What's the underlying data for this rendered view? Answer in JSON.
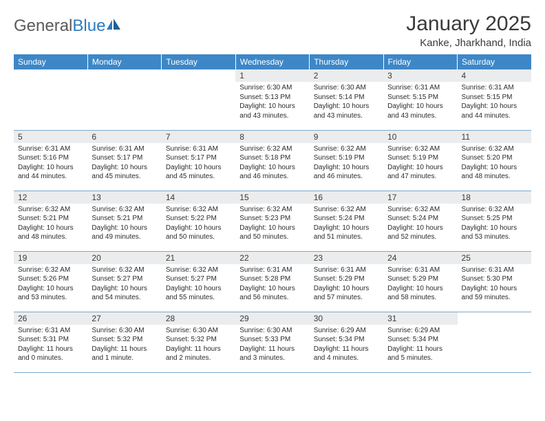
{
  "logo": {
    "text1": "General",
    "text2": "Blue"
  },
  "title": "January 2025",
  "location": "Kanke, Jharkhand, India",
  "colors": {
    "header_bg": "#3d87c7",
    "header_fg": "#ffffff",
    "daynum_bg": "#ebeced",
    "rule": "#7aa8cc",
    "logo_gray": "#5a5a5a",
    "logo_blue": "#2d7bbf"
  },
  "weekdays": [
    "Sunday",
    "Monday",
    "Tuesday",
    "Wednesday",
    "Thursday",
    "Friday",
    "Saturday"
  ],
  "weeks": [
    [
      null,
      null,
      null,
      {
        "n": "1",
        "sr": "6:30 AM",
        "ss": "5:13 PM",
        "dl": "10 hours and 43 minutes."
      },
      {
        "n": "2",
        "sr": "6:30 AM",
        "ss": "5:14 PM",
        "dl": "10 hours and 43 minutes."
      },
      {
        "n": "3",
        "sr": "6:31 AM",
        "ss": "5:15 PM",
        "dl": "10 hours and 43 minutes."
      },
      {
        "n": "4",
        "sr": "6:31 AM",
        "ss": "5:15 PM",
        "dl": "10 hours and 44 minutes."
      }
    ],
    [
      {
        "n": "5",
        "sr": "6:31 AM",
        "ss": "5:16 PM",
        "dl": "10 hours and 44 minutes."
      },
      {
        "n": "6",
        "sr": "6:31 AM",
        "ss": "5:17 PM",
        "dl": "10 hours and 45 minutes."
      },
      {
        "n": "7",
        "sr": "6:31 AM",
        "ss": "5:17 PM",
        "dl": "10 hours and 45 minutes."
      },
      {
        "n": "8",
        "sr": "6:32 AM",
        "ss": "5:18 PM",
        "dl": "10 hours and 46 minutes."
      },
      {
        "n": "9",
        "sr": "6:32 AM",
        "ss": "5:19 PM",
        "dl": "10 hours and 46 minutes."
      },
      {
        "n": "10",
        "sr": "6:32 AM",
        "ss": "5:19 PM",
        "dl": "10 hours and 47 minutes."
      },
      {
        "n": "11",
        "sr": "6:32 AM",
        "ss": "5:20 PM",
        "dl": "10 hours and 48 minutes."
      }
    ],
    [
      {
        "n": "12",
        "sr": "6:32 AM",
        "ss": "5:21 PM",
        "dl": "10 hours and 48 minutes."
      },
      {
        "n": "13",
        "sr": "6:32 AM",
        "ss": "5:21 PM",
        "dl": "10 hours and 49 minutes."
      },
      {
        "n": "14",
        "sr": "6:32 AM",
        "ss": "5:22 PM",
        "dl": "10 hours and 50 minutes."
      },
      {
        "n": "15",
        "sr": "6:32 AM",
        "ss": "5:23 PM",
        "dl": "10 hours and 50 minutes."
      },
      {
        "n": "16",
        "sr": "6:32 AM",
        "ss": "5:24 PM",
        "dl": "10 hours and 51 minutes."
      },
      {
        "n": "17",
        "sr": "6:32 AM",
        "ss": "5:24 PM",
        "dl": "10 hours and 52 minutes."
      },
      {
        "n": "18",
        "sr": "6:32 AM",
        "ss": "5:25 PM",
        "dl": "10 hours and 53 minutes."
      }
    ],
    [
      {
        "n": "19",
        "sr": "6:32 AM",
        "ss": "5:26 PM",
        "dl": "10 hours and 53 minutes."
      },
      {
        "n": "20",
        "sr": "6:32 AM",
        "ss": "5:27 PM",
        "dl": "10 hours and 54 minutes."
      },
      {
        "n": "21",
        "sr": "6:32 AM",
        "ss": "5:27 PM",
        "dl": "10 hours and 55 minutes."
      },
      {
        "n": "22",
        "sr": "6:31 AM",
        "ss": "5:28 PM",
        "dl": "10 hours and 56 minutes."
      },
      {
        "n": "23",
        "sr": "6:31 AM",
        "ss": "5:29 PM",
        "dl": "10 hours and 57 minutes."
      },
      {
        "n": "24",
        "sr": "6:31 AM",
        "ss": "5:29 PM",
        "dl": "10 hours and 58 minutes."
      },
      {
        "n": "25",
        "sr": "6:31 AM",
        "ss": "5:30 PM",
        "dl": "10 hours and 59 minutes."
      }
    ],
    [
      {
        "n": "26",
        "sr": "6:31 AM",
        "ss": "5:31 PM",
        "dl": "11 hours and 0 minutes."
      },
      {
        "n": "27",
        "sr": "6:30 AM",
        "ss": "5:32 PM",
        "dl": "11 hours and 1 minute."
      },
      {
        "n": "28",
        "sr": "6:30 AM",
        "ss": "5:32 PM",
        "dl": "11 hours and 2 minutes."
      },
      {
        "n": "29",
        "sr": "6:30 AM",
        "ss": "5:33 PM",
        "dl": "11 hours and 3 minutes."
      },
      {
        "n": "30",
        "sr": "6:29 AM",
        "ss": "5:34 PM",
        "dl": "11 hours and 4 minutes."
      },
      {
        "n": "31",
        "sr": "6:29 AM",
        "ss": "5:34 PM",
        "dl": "11 hours and 5 minutes."
      },
      null
    ]
  ],
  "labels": {
    "sunrise": "Sunrise:",
    "sunset": "Sunset:",
    "daylight": "Daylight:"
  }
}
